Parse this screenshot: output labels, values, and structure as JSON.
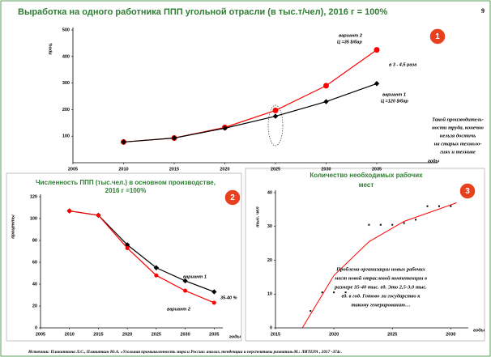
{
  "page_number": "9",
  "title": "Выработка на одного работника ППП угольной отрасли (в тыс.т/чел), 2016 г = 100%",
  "source": "Источник: Плакиткина Л.С., Плакиткин Ю.А. «Угольная промышленность мира и России: анализ, тенденции и перспективы развития»М.: ЛИТЕРА , 2017 -374с.",
  "chart_data": [
    {
      "type": "line",
      "badge": "1",
      "ylabel": "проц.",
      "xlabel": "годы",
      "x": [
        2010,
        2015,
        2020,
        2025,
        2030,
        2035
      ],
      "xlim": [
        2005,
        2041
      ],
      "xticks": [
        2005,
        2010,
        2015,
        2020,
        2025,
        2030,
        2035
      ],
      "ylim": [
        0,
        500
      ],
      "yticks": [
        100,
        200,
        300,
        400,
        500
      ],
      "series": [
        {
          "name": "вариант 2",
          "color": "#ff0000",
          "marker": "circle",
          "values": [
            78,
            93,
            133,
            197,
            290,
            425
          ]
        },
        {
          "name": "вариант 1",
          "color": "#000000",
          "marker": "diamond",
          "values": [
            78,
            93,
            130,
            175,
            230,
            298
          ]
        }
      ],
      "annotations": [
        "Ц =35 $/бар",
        "в 3 - 4,5 раза",
        "Ц =120 $/бар"
      ],
      "note": [
        "Такой производитель-",
        "ности труда, конечно",
        "нельзя достичь",
        "на старых техноло-",
        "гиях и технике"
      ]
    },
    {
      "type": "line",
      "badge": "2",
      "ylabel": "проценты",
      "xlabel": "годы",
      "title": [
        "Численность ППП (тыс.чел.) в основном производстве,",
        "2016 г =100%"
      ],
      "x": [
        2010,
        2015,
        2020,
        2025,
        2030,
        2035
      ],
      "xlim": [
        2005,
        2036.5
      ],
      "xticks": [
        2005,
        2010,
        2015,
        2020,
        2025,
        2030,
        2035
      ],
      "ylim": [
        0,
        120
      ],
      "yticks": [
        0,
        20,
        40,
        60,
        80,
        100,
        120
      ],
      "series": [
        {
          "name": "вариант 1",
          "color": "#000000",
          "marker": "diamond",
          "values": [
            107,
            103,
            76,
            55,
            43,
            33
          ]
        },
        {
          "name": "вариант 2",
          "color": "#ff0000",
          "marker": "circle",
          "values": [
            107,
            103,
            73,
            48,
            34,
            23
          ]
        }
      ],
      "annotations": [
        "35-40 %"
      ]
    },
    {
      "type": "scatter",
      "badge": "3",
      "ylabel": "тыс. чел",
      "xlabel": "годы",
      "title": [
        "Количество необходимых рабочих",
        "мест"
      ],
      "x": [
        2018,
        2019,
        2020,
        2021,
        2023,
        2024,
        2025,
        2026,
        2027,
        2028,
        2029,
        2030
      ],
      "values": [
        5,
        10.5,
        10.5,
        10.5,
        30.5,
        30.5,
        30.5,
        31,
        32,
        36,
        36,
        36
      ],
      "color": "#000000",
      "trend": {
        "color": "#ff0000",
        "x": [
          2017.3,
          2020,
          2023,
          2026,
          2030.5
        ],
        "values": [
          0,
          15.5,
          25.5,
          31.5,
          37
        ]
      },
      "xlim": [
        2015,
        2031.5
      ],
      "xticks": [
        2015,
        2020,
        2025,
        2030
      ],
      "ylim": [
        0,
        40
      ],
      "yticks": [
        0,
        10,
        20,
        30,
        40
      ],
      "note": [
        "Проблема организации новых рабочих",
        "мест новой отраслевой компетенции в",
        "размере 35-40 тыс. ед. Это 2,5-3,0 тыс.",
        "ед. в год. Готово ли государство к",
        "такому генерированию…"
      ]
    }
  ]
}
